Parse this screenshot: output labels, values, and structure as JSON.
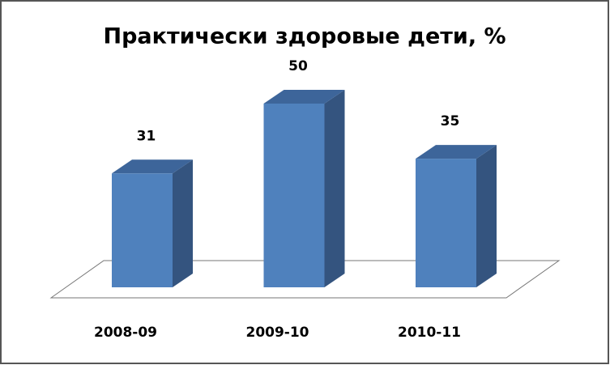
{
  "chart_data": {
    "type": "bar3d",
    "title": "Практически здоровые дети, %",
    "categories": [
      "2008-09",
      "2009-10",
      "2010-11"
    ],
    "values": [
      31,
      50,
      35
    ],
    "color": "#4f81bd"
  }
}
